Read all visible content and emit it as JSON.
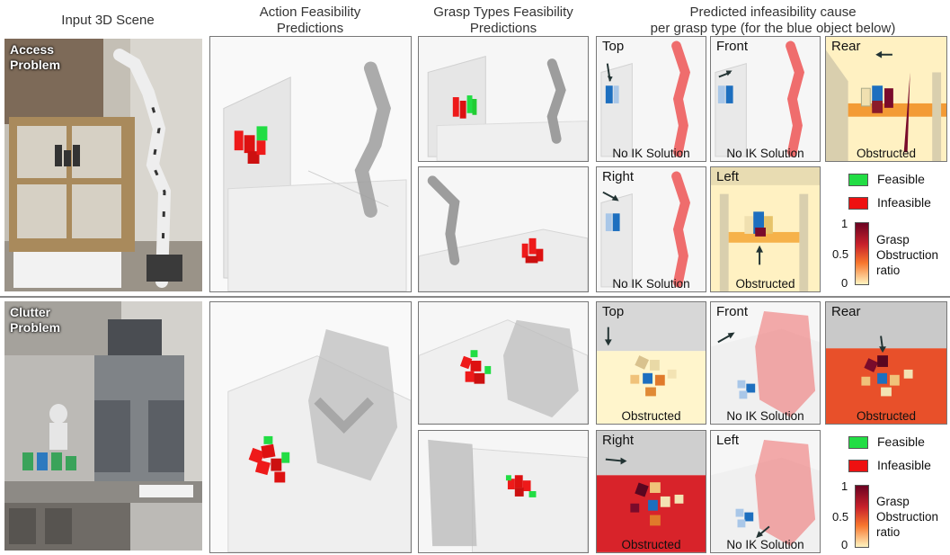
{
  "headers": {
    "col1": "Input 3D Scene",
    "col2_line1": "Action Feasibility",
    "col2_line2": "Predictions",
    "col3_line1": "Grasp Types Feasibility",
    "col3_line2": "Predictions",
    "col4_line1": "Predicted infeasibility cause",
    "col4_line2": "per grasp type (for the blue object below)"
  },
  "rows": [
    {
      "tag_line1": "Access",
      "tag_line2": "Problem",
      "panels": {
        "top": {
          "label": "Top",
          "caption": "No IK Solution"
        },
        "front": {
          "label": "Front",
          "caption": "No IK Solution"
        },
        "rear": {
          "label": "Rear",
          "caption": "Obstructed"
        },
        "right": {
          "label": "Right",
          "caption": "No IK Solution"
        },
        "left": {
          "label": "Left",
          "caption": "Obstructed"
        }
      }
    },
    {
      "tag_line1": "Clutter",
      "tag_line2": "Problem",
      "panels": {
        "top": {
          "label": "Top",
          "caption": "Obstructed"
        },
        "front": {
          "label": "Front",
          "caption": "No IK Solution"
        },
        "rear": {
          "label": "Rear",
          "caption": "Obstructed"
        },
        "right": {
          "label": "Right",
          "caption": "Obstructed"
        },
        "left": {
          "label": "Left",
          "caption": "No IK Solution"
        }
      }
    }
  ],
  "legend": {
    "feasible": "Feasible",
    "infeasible": "Infeasible",
    "feasible_color": "#22dd44",
    "infeasible_color": "#ee1111",
    "colorbar_max": "1",
    "colorbar_mid": "0.5",
    "colorbar_min": "0",
    "colorbar_title_1": "Grasp",
    "colorbar_title_2": "Obstruction",
    "colorbar_title_3": "ratio"
  }
}
